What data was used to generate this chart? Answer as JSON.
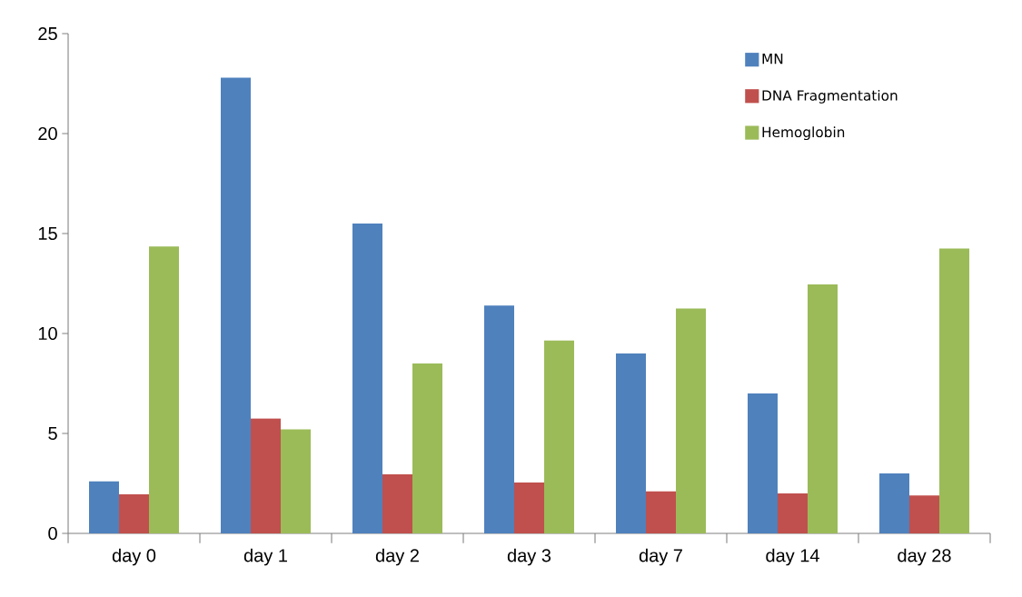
{
  "chart_data": {
    "type": "bar",
    "categories": [
      "day 0",
      "day 1",
      "day 2",
      "day 3",
      "day 7",
      "day 14",
      "day 28"
    ],
    "series": [
      {
        "name": "MN",
        "color": "#4f81bd",
        "values": [
          2.6,
          22.8,
          15.5,
          11.4,
          9.0,
          7.0,
          3.0
        ]
      },
      {
        "name": "DNA Fragmentation",
        "color": "#c0504d",
        "values": [
          1.95,
          5.75,
          2.95,
          2.55,
          2.1,
          2.0,
          1.9
        ]
      },
      {
        "name": "Hemoglobin",
        "color": "#9bbb59",
        "values": [
          14.35,
          5.2,
          8.5,
          9.65,
          11.25,
          12.45,
          14.25
        ]
      }
    ],
    "ylim": [
      0,
      25
    ],
    "yticks": [
      0,
      5,
      10,
      15,
      20,
      25
    ],
    "grid": false,
    "legend": "top right"
  }
}
